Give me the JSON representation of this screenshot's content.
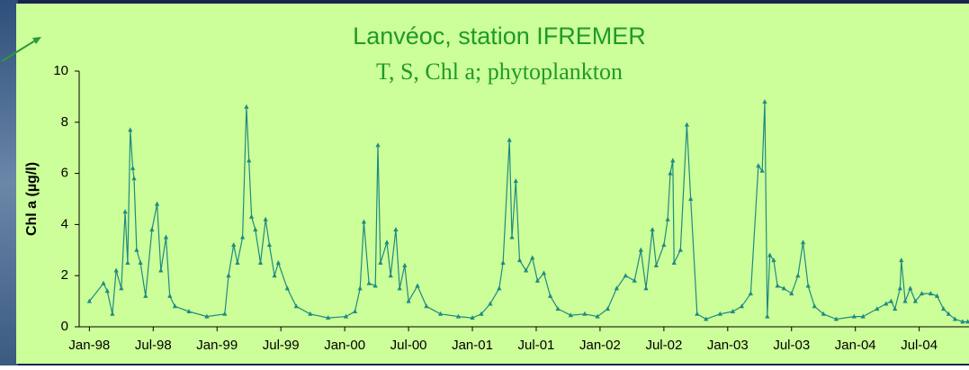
{
  "chart_data": {
    "type": "line",
    "title": "Lanvéoc, station IFREMER",
    "subtitle": "T, S, Chl a; phytoplankton",
    "y_label": "Chl a (µg/l)",
    "color": "#1f8a82",
    "grid": false,
    "xlim": [
      1997.92,
      2004.89
    ],
    "xticks": [
      {
        "value": 1998,
        "label": "Jan-98"
      },
      {
        "value": 1998.5,
        "label": "Jul-98"
      },
      {
        "value": 1999,
        "label": "Jan-99"
      },
      {
        "value": 1999.5,
        "label": "Jul-99"
      },
      {
        "value": 2000,
        "label": "Jan-00"
      },
      {
        "value": 2000.5,
        "label": "Jul-00"
      },
      {
        "value": 2001,
        "label": "Jan-01"
      },
      {
        "value": 2001.5,
        "label": "Jul-01"
      },
      {
        "value": 2002,
        "label": "Jan-02"
      },
      {
        "value": 2002.5,
        "label": "Jul-02"
      },
      {
        "value": 2003,
        "label": "Jan-03"
      },
      {
        "value": 2003.5,
        "label": "Jul-03"
      },
      {
        "value": 2004,
        "label": "Jan-04"
      },
      {
        "value": 2004.5,
        "label": "Jul-04"
      }
    ],
    "ylim": [
      0,
      10
    ],
    "yticks": [
      0,
      2,
      4,
      6,
      8,
      10
    ],
    "x": [
      1998.0,
      1998.11,
      1998.14,
      1998.18,
      1998.21,
      1998.25,
      1998.28,
      1998.3,
      1998.32,
      1998.34,
      1998.35,
      1998.37,
      1998.4,
      1998.44,
      1998.49,
      1998.53,
      1998.56,
      1998.6,
      1998.63,
      1998.67,
      1998.78,
      1998.92,
      1999.06,
      1999.09,
      1999.13,
      1999.16,
      1999.2,
      1999.23,
      1999.25,
      1999.27,
      1999.3,
      1999.34,
      1999.38,
      1999.41,
      1999.45,
      1999.48,
      1999.55,
      1999.62,
      1999.73,
      1999.87,
      2000.01,
      2000.08,
      2000.12,
      2000.15,
      2000.19,
      2000.24,
      2000.26,
      2000.28,
      2000.33,
      2000.36,
      2000.4,
      2000.43,
      2000.47,
      2000.5,
      2000.57,
      2000.64,
      2000.75,
      2000.89,
      2001.0,
      2001.07,
      2001.14,
      2001.21,
      2001.24,
      2001.29,
      2001.31,
      2001.34,
      2001.37,
      2001.42,
      2001.47,
      2001.51,
      2001.56,
      2001.61,
      2001.67,
      2001.77,
      2001.88,
      2001.98,
      2002.06,
      2002.13,
      2002.2,
      2002.27,
      2002.32,
      2002.36,
      2002.41,
      2002.44,
      2002.5,
      2002.53,
      2002.55,
      2002.57,
      2002.58,
      2002.63,
      2002.68,
      2002.71,
      2002.76,
      2002.83,
      2002.94,
      2003.04,
      2003.11,
      2003.18,
      2003.24,
      2003.27,
      2003.29,
      2003.31,
      2003.33,
      2003.36,
      2003.39,
      2003.44,
      2003.5,
      2003.55,
      2003.59,
      2003.63,
      2003.68,
      2003.75,
      2003.85,
      2003.99,
      2004.06,
      2004.17,
      2004.24,
      2004.28,
      2004.31,
      2004.35,
      2004.36,
      2004.39,
      2004.43,
      2004.47,
      2004.52,
      2004.59,
      2004.64,
      2004.69,
      2004.73,
      2004.78,
      2004.84,
      2004.88
    ],
    "values": [
      1.0,
      1.7,
      1.4,
      0.5,
      2.2,
      1.5,
      4.5,
      2.5,
      7.7,
      6.2,
      5.8,
      3.0,
      2.5,
      1.2,
      3.8,
      4.8,
      2.2,
      3.5,
      1.2,
      0.8,
      0.6,
      0.4,
      0.5,
      2.0,
      3.2,
      2.5,
      3.5,
      8.6,
      6.5,
      4.3,
      3.8,
      2.5,
      4.2,
      3.2,
      2.0,
      2.5,
      1.5,
      0.8,
      0.5,
      0.35,
      0.4,
      0.6,
      1.5,
      4.1,
      1.7,
      1.6,
      7.1,
      2.5,
      3.3,
      2.0,
      3.8,
      1.5,
      2.4,
      1.0,
      1.6,
      0.8,
      0.5,
      0.4,
      0.35,
      0.5,
      0.9,
      1.5,
      2.5,
      7.3,
      3.5,
      5.7,
      2.6,
      2.2,
      2.7,
      1.8,
      2.1,
      1.2,
      0.7,
      0.45,
      0.5,
      0.4,
      0.7,
      1.5,
      2.0,
      1.8,
      3.0,
      1.5,
      3.8,
      2.4,
      3.2,
      4.2,
      6.0,
      6.5,
      2.5,
      3.0,
      7.9,
      5.0,
      0.5,
      0.3,
      0.5,
      0.6,
      0.8,
      1.3,
      6.3,
      6.1,
      8.8,
      0.4,
      2.8,
      2.6,
      1.6,
      1.5,
      1.3,
      2.0,
      3.3,
      1.6,
      0.8,
      0.5,
      0.3,
      0.4,
      0.4,
      0.7,
      0.9,
      1.0,
      0.7,
      1.5,
      2.6,
      1.0,
      1.5,
      1.0,
      1.3,
      1.3,
      1.2,
      0.7,
      0.5,
      0.3,
      0.2,
      0.2
    ]
  }
}
